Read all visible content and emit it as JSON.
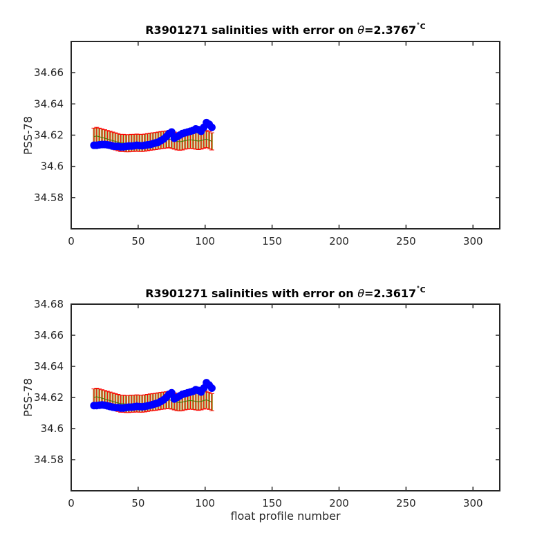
{
  "chart_data": [
    {
      "type": "scatter",
      "title": "R3901271 salinities with error on θ=2.3767˚C",
      "title_parts": {
        "prefix": "R3901271 salinities with error on ",
        "symbol": "θ",
        "value": "=2.3767",
        "unit": "˚C"
      },
      "ylabel": "PSS-78",
      "xlabel": "",
      "xlim": [
        0,
        320
      ],
      "ylim": [
        34.56,
        34.68
      ],
      "x_ticks": [
        "0",
        "50",
        "100",
        "150",
        "200",
        "250",
        "300"
      ],
      "y_ticks": [
        "34.58",
        "34.6",
        "34.62",
        "34.64",
        "34.66"
      ],
      "grid": false,
      "series": [
        {
          "role": "mapped-salinity-with-error",
          "color": "#ff0000",
          "fill_color": "#808000",
          "error": 0.0055,
          "x": [
            17,
            19,
            21,
            23,
            25,
            27,
            29,
            31,
            33,
            35,
            37,
            39,
            41,
            43,
            45,
            47,
            49,
            51,
            53,
            55,
            57,
            59,
            61,
            63,
            65,
            67,
            69,
            71,
            73,
            75,
            77,
            79,
            81,
            83,
            85,
            87,
            89,
            91,
            93,
            95,
            97,
            99,
            101,
            103,
            105
          ],
          "y": [
            34.619,
            34.6195,
            34.619,
            34.6185,
            34.618,
            34.6175,
            34.617,
            34.6165,
            34.616,
            34.6155,
            34.615,
            34.615,
            34.6148,
            34.6148,
            34.615,
            34.615,
            34.6152,
            34.615,
            34.615,
            34.6152,
            34.6155,
            34.6158,
            34.616,
            34.6162,
            34.6165,
            34.6168,
            34.617,
            34.6172,
            34.6175,
            34.617,
            34.6165,
            34.616,
            34.6158,
            34.616,
            34.6165,
            34.6168,
            34.617,
            34.6168,
            34.6165,
            34.6162,
            34.6165,
            34.617,
            34.6175,
            34.6168,
            34.616
          ]
        },
        {
          "role": "float-salinity",
          "color": "#0000ff",
          "x": [
            17,
            19,
            21,
            23,
            25,
            27,
            29,
            31,
            33,
            35,
            37,
            39,
            41,
            43,
            45,
            47,
            49,
            51,
            53,
            55,
            57,
            59,
            61,
            63,
            65,
            67,
            69,
            71,
            73,
            75,
            77,
            79,
            81,
            83,
            85,
            87,
            89,
            91,
            93,
            95,
            97,
            99,
            101,
            103,
            105
          ],
          "y": [
            34.6135,
            34.6135,
            34.6138,
            34.614,
            34.614,
            34.6138,
            34.6135,
            34.613,
            34.6128,
            34.6128,
            34.6125,
            34.6125,
            34.6128,
            34.613,
            34.613,
            34.6132,
            34.6135,
            34.6133,
            34.6132,
            34.6135,
            34.6138,
            34.614,
            34.6145,
            34.615,
            34.6155,
            34.6165,
            34.6175,
            34.619,
            34.621,
            34.622,
            34.618,
            34.619,
            34.62,
            34.621,
            34.6215,
            34.622,
            34.6225,
            34.623,
            34.624,
            34.6235,
            34.6225,
            34.625,
            34.628,
            34.627,
            34.625
          ]
        }
      ]
    },
    {
      "type": "scatter",
      "title": "R3901271 salinities with error on θ=2.3617˚C",
      "title_parts": {
        "prefix": "R3901271 salinities with error on ",
        "symbol": "θ",
        "value": "=2.3617",
        "unit": "˚C"
      },
      "ylabel": "PSS-78",
      "xlabel": "float profile number",
      "xlim": [
        0,
        320
      ],
      "ylim": [
        34.56,
        34.68
      ],
      "x_ticks": [
        "0",
        "50",
        "100",
        "150",
        "200",
        "250",
        "300"
      ],
      "y_ticks": [
        "34.58",
        "34.6",
        "34.62",
        "34.64",
        "34.66",
        "34.68"
      ],
      "grid": false,
      "series": [
        {
          "role": "mapped-salinity-with-error",
          "color": "#ff0000",
          "fill_color": "#808000",
          "error": 0.0055,
          "x": [
            17,
            19,
            21,
            23,
            25,
            27,
            29,
            31,
            33,
            35,
            37,
            39,
            41,
            43,
            45,
            47,
            49,
            51,
            53,
            55,
            57,
            59,
            61,
            63,
            65,
            67,
            69,
            71,
            73,
            75,
            77,
            79,
            81,
            83,
            85,
            87,
            89,
            91,
            93,
            95,
            97,
            99,
            101,
            103,
            105
          ],
          "y": [
            34.62,
            34.6205,
            34.62,
            34.6195,
            34.619,
            34.6185,
            34.618,
            34.6175,
            34.617,
            34.6165,
            34.616,
            34.616,
            34.6158,
            34.6158,
            34.616,
            34.616,
            34.6162,
            34.616,
            34.616,
            34.6162,
            34.6165,
            34.6168,
            34.617,
            34.6172,
            34.6175,
            34.6178,
            34.618,
            34.6182,
            34.6185,
            34.618,
            34.6175,
            34.617,
            34.6168,
            34.617,
            34.6175,
            34.6178,
            34.618,
            34.6178,
            34.6175,
            34.6172,
            34.6175,
            34.618,
            34.6185,
            34.6178,
            34.617
          ]
        },
        {
          "role": "float-salinity",
          "color": "#0000ff",
          "x": [
            17,
            19,
            21,
            23,
            25,
            27,
            29,
            31,
            33,
            35,
            37,
            39,
            41,
            43,
            45,
            47,
            49,
            51,
            53,
            55,
            57,
            59,
            61,
            63,
            65,
            67,
            69,
            71,
            73,
            75,
            77,
            79,
            81,
            83,
            85,
            87,
            89,
            91,
            93,
            95,
            97,
            99,
            101,
            103,
            105
          ],
          "y": [
            34.6148,
            34.6148,
            34.615,
            34.6152,
            34.615,
            34.6146,
            34.6142,
            34.6138,
            34.6135,
            34.6135,
            34.6132,
            34.6132,
            34.6135,
            34.6138,
            34.6138,
            34.614,
            34.6143,
            34.6141,
            34.614,
            34.6143,
            34.6146,
            34.615,
            34.6155,
            34.616,
            34.6165,
            34.6175,
            34.6185,
            34.62,
            34.622,
            34.623,
            34.619,
            34.62,
            34.621,
            34.622,
            34.6225,
            34.623,
            34.6235,
            34.624,
            34.625,
            34.6245,
            34.6235,
            34.626,
            34.6295,
            34.628,
            34.626
          ]
        }
      ]
    }
  ]
}
